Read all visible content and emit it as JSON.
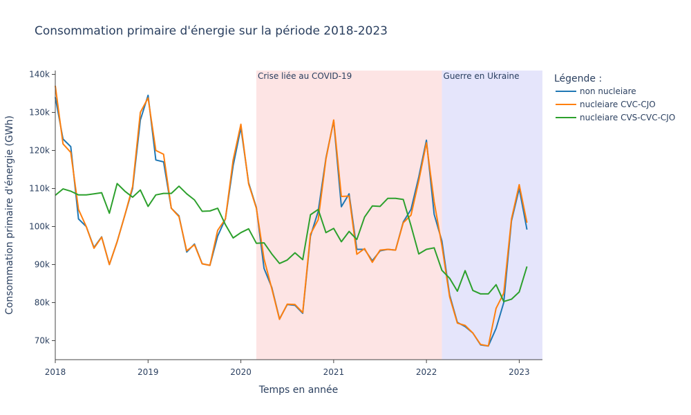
{
  "chart_data": {
    "type": "line",
    "title": "Consommation primaire d'énergie sur la période 2018-2023",
    "xlabel": "Temps en année",
    "ylabel": "Consommation primaire d'énergie (GWh)",
    "x_start": "2018-01",
    "x_step": "month",
    "xlim": [
      "2018-01",
      "2023-04"
    ],
    "ylim": [
      65000,
      141000
    ],
    "x_ticks": [
      "2018",
      "2019",
      "2020",
      "2021",
      "2022",
      "2023"
    ],
    "y_ticks": [
      70000,
      80000,
      90000,
      100000,
      110000,
      120000,
      130000,
      140000
    ],
    "y_tick_labels": [
      "70k",
      "80k",
      "90k",
      "100k",
      "110k",
      "120k",
      "130k",
      "140k"
    ],
    "legend": {
      "title": "Légende :",
      "position": "top-right-outside"
    },
    "grid": false,
    "shaded_regions": [
      {
        "label": "Crise liée au COVID-19",
        "start": "2020-03",
        "end": "2022-03",
        "color": "#fde4e4"
      },
      {
        "label": "Guerre en Ukraine",
        "start": "2022-03",
        "end": "2023-04",
        "color": "#e5e5fb"
      }
    ],
    "series": [
      {
        "name": "non nucleiare",
        "color": "#1f77b4",
        "values": [
          134000,
          123000,
          121000,
          102000,
          100000,
          94500,
          97300,
          90000,
          96000,
          103000,
          110000,
          128000,
          134500,
          117500,
          117000,
          104800,
          102800,
          93300,
          95400,
          90200,
          89800,
          97500,
          102000,
          116000,
          126000,
          111500,
          105000,
          89000,
          84000,
          75700,
          79500,
          79300,
          77200,
          97500,
          104000,
          118000,
          127800,
          105200,
          108600,
          94000,
          94000,
          91000,
          93600,
          94000,
          93800,
          101200,
          104500,
          113000,
          122700,
          103200,
          96200,
          82000,
          74800,
          73700,
          72000,
          68900,
          68600,
          73200,
          80000,
          101500,
          110000,
          99200
        ]
      },
      {
        "name": "nucleiare CVC-CJO",
        "color": "#ff7f0e",
        "values": [
          137000,
          121700,
          119500,
          104500,
          100000,
          94300,
          97200,
          90000,
          96000,
          103000,
          110500,
          130000,
          133800,
          120000,
          119000,
          104800,
          102600,
          93600,
          95200,
          90200,
          89800,
          99000,
          102000,
          117500,
          126900,
          111200,
          104800,
          91500,
          83700,
          75600,
          79600,
          79500,
          77400,
          98000,
          101800,
          117700,
          128000,
          107900,
          108000,
          92700,
          94200,
          90600,
          93800,
          94000,
          93800,
          101000,
          103000,
          112000,
          122000,
          106500,
          95000,
          81500,
          74600,
          74000,
          72000,
          69000,
          68600,
          78500,
          82500,
          102000,
          111000,
          101000
        ]
      },
      {
        "name": "nucleiare CVS-CVC-CJO",
        "color": "#2ca02c",
        "values": [
          108200,
          109900,
          109300,
          108300,
          108300,
          108600,
          108900,
          103500,
          111300,
          109300,
          107700,
          109600,
          105300,
          108300,
          108700,
          108700,
          110600,
          108600,
          107000,
          104000,
          104100,
          104800,
          100500,
          97000,
          98400,
          99400,
          95600,
          95700,
          92800,
          90300,
          91200,
          93100,
          91300,
          103100,
          104500,
          98400,
          99500,
          96000,
          98700,
          96600,
          102500,
          105400,
          105300,
          107400,
          107400,
          107100,
          100200,
          92800,
          94000,
          94400,
          88500,
          86400,
          83000,
          88400,
          83200,
          82300,
          82300,
          84700,
          80300,
          80900,
          82800,
          89500
        ]
      }
    ]
  }
}
